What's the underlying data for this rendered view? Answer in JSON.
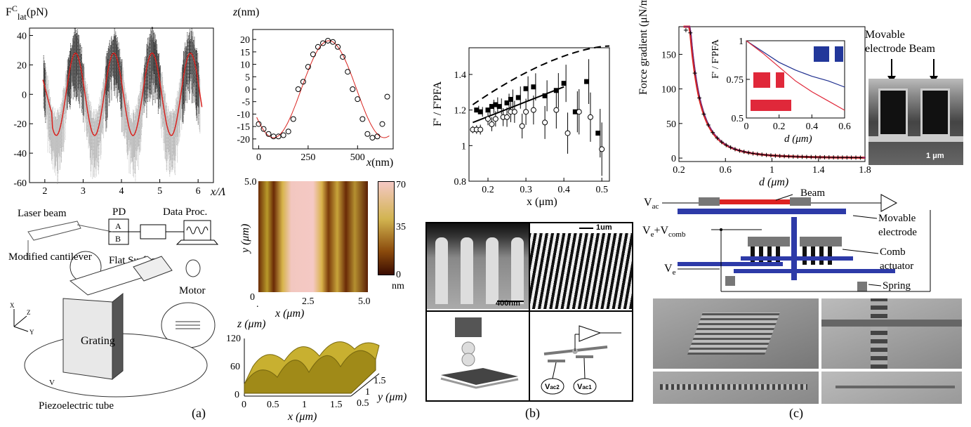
{
  "panel_a": {
    "caption": "(a)",
    "force_plot": {
      "ylabel": "F",
      "ylabel_sup": "C",
      "ylabel_sub": "lat",
      "ylabel_unit": "(pN)",
      "xlabel": "x/Λ"
    },
    "z_plot": {
      "ylabel": "z(nm)",
      "xlabel": "x(nm)"
    },
    "schematic": {
      "laser_beam": "Laser beam",
      "pd": "PD",
      "pd_a": "A",
      "pd_b": "B",
      "data_proc": "Data Proc.",
      "flat_surface": "Flat Surface",
      "modified_cantilever": "Modified cantilever",
      "motor": "Motor",
      "grating": "Grating",
      "piezo": "Piezoelectric tube",
      "v": "V",
      "axis_x": "X",
      "axis_y": "Y",
      "axis_z": "Z"
    },
    "afm_map": {
      "ylabel": "y (μm)",
      "xlabel": "x (μm)",
      "cb_unit": "nm"
    },
    "surf3d": {
      "zlabel": "z (μm)",
      "xlabel": "x (μm)",
      "ylabel": "y (μm)"
    }
  },
  "panel_b": {
    "caption": "(b)",
    "plot": {
      "ylabel": "F' / F'PFA",
      "xlabel": "x (μm)"
    },
    "scalebar_1": "400nm",
    "scalebar_2": "1um",
    "vac2": "V",
    "vac2_sub": "ac2",
    "vac1": "V",
    "vac1_sub": "ac1"
  },
  "panel_c": {
    "caption": "(c)",
    "plot": {
      "ylabel": "Force gradient (μN/m)",
      "xlabel": "d (μm)"
    },
    "inset": {
      "ylabel": "F' / F'PFA",
      "xlabel": "d (μm)"
    },
    "sem_labels": {
      "movable": "Movable",
      "electrode_beam": "electrode Beam",
      "scale": "1 μm"
    },
    "schematic": {
      "vac": "V",
      "vac_sub": "ac",
      "beam": "Beam",
      "ve_comb": "V",
      "ve_comb_sub1": "e",
      "ve_comb_mid": "+V",
      "ve_comb_sub2": "comb",
      "movable": "Movable",
      "electrode": "electrode",
      "comb": "Comb",
      "actuator": "actuator",
      "ve": "V",
      "ve_sub": "e",
      "spring": "Spring"
    }
  },
  "chart_data": [
    {
      "type": "line",
      "title": "",
      "xlabel": "x/Λ",
      "ylabel": "F^C_lat (pN)",
      "xlim": [
        1.6,
        6.4
      ],
      "ylim": [
        -60,
        45
      ],
      "xticks": [
        2,
        3,
        4,
        5,
        6
      ],
      "yticks": [
        -60,
        -40,
        -20,
        0,
        20,
        40
      ],
      "series": [
        {
          "values_desc": "sinusoidal fit",
          "x": [
            1.95,
            2.1,
            2.3,
            2.5,
            2.8,
            3.0,
            3.2,
            3.5,
            3.8,
            4.0,
            4.2,
            4.5,
            4.8,
            5.0,
            5.2,
            5.5,
            5.8,
            6.0,
            6.1
          ],
          "y": [
            10,
            -10,
            -27,
            -10,
            27,
            5,
            -27,
            -10,
            26,
            0,
            -27,
            -5,
            27,
            0,
            -27,
            -10,
            27,
            5,
            -5
          ]
        }
      ]
    },
    {
      "type": "scatter",
      "xlabel": "x(nm)",
      "ylabel": "z(nm)",
      "xlim": [
        -30,
        680
      ],
      "ylim": [
        -24,
        24
      ],
      "xticks": [
        0,
        250,
        500
      ],
      "yticks": [
        -20,
        -15,
        -10,
        -5,
        0,
        5,
        10,
        15,
        20
      ],
      "x": [
        0,
        25,
        50,
        75,
        100,
        125,
        150,
        175,
        200,
        225,
        250,
        275,
        300,
        325,
        350,
        375,
        400,
        425,
        450,
        475,
        500,
        525,
        550,
        575,
        600,
        625,
        650
      ],
      "y": [
        -14,
        -16,
        -18,
        -19,
        -19,
        -18.5,
        -17,
        -12,
        0,
        3,
        9,
        14,
        17,
        18.5,
        19.5,
        19,
        17,
        13,
        7,
        0,
        -4,
        -12,
        -18,
        -19.5,
        -19,
        -14,
        -3
      ]
    },
    {
      "type": "scatter",
      "xlabel": "x (μm)",
      "ylabel": "F' / F'PFA",
      "xlim": [
        0.15,
        0.52
      ],
      "ylim": [
        0.8,
        1.55
      ],
      "xticks": [
        0.2,
        0.3,
        0.4,
        0.5
      ],
      "yticks": [
        0.8,
        1,
        1.2,
        1.4
      ],
      "series": [
        {
          "marker": "filled-square",
          "x": [
            0.17,
            0.18,
            0.2,
            0.21,
            0.22,
            0.23,
            0.25,
            0.26,
            0.28,
            0.3,
            0.32,
            0.35,
            0.38,
            0.4,
            0.43,
            0.46,
            0.49
          ],
          "y": [
            1.2,
            1.19,
            1.2,
            1.22,
            1.23,
            1.22,
            1.24,
            1.26,
            1.27,
            1.32,
            1.33,
            1.28,
            1.31,
            1.35,
            1.19,
            1.36,
            1.07
          ]
        },
        {
          "marker": "open-circle",
          "x": [
            0.16,
            0.17,
            0.18,
            0.2,
            0.21,
            0.22,
            0.24,
            0.25,
            0.26,
            0.27,
            0.29,
            0.3,
            0.32,
            0.35,
            0.38,
            0.41,
            0.44,
            0.47,
            0.5
          ],
          "y": [
            1.09,
            1.09,
            1.09,
            1.15,
            1.12,
            1.15,
            1.16,
            1.16,
            1.19,
            1.19,
            1.11,
            1.19,
            1.2,
            1.13,
            1.2,
            1.07,
            1.19,
            1.16,
            0.98
          ]
        },
        {
          "style": "solid-line",
          "x": [
            0.16,
            0.4
          ],
          "y": [
            1.13,
            1.33
          ]
        },
        {
          "style": "dashed-line",
          "x": [
            0.16,
            0.2,
            0.3,
            0.4,
            0.5
          ],
          "y": [
            1.23,
            1.31,
            1.42,
            1.5,
            1.56
          ]
        }
      ]
    },
    {
      "type": "line",
      "xlabel": "d (μm)",
      "ylabel": "Force gradient (μN/m)",
      "xlim": [
        0.2,
        1.8
      ],
      "ylim": [
        -5,
        190
      ],
      "xticks": [
        0.2,
        0.6,
        1,
        1.4,
        1.8
      ],
      "yticks": [
        0,
        50,
        100,
        150
      ],
      "x": [
        0.23,
        0.26,
        0.3,
        0.35,
        0.4,
        0.5,
        0.6,
        0.7,
        0.8,
        1.0,
        1.2,
        1.4,
        1.6,
        1.8
      ],
      "y": [
        185,
        145,
        100,
        65,
        42,
        20,
        11,
        7,
        5,
        3,
        2,
        1.5,
        1,
        1
      ]
    },
    {
      "type": "line",
      "xlabel": "d (μm)",
      "ylabel": "F' / F'PFA",
      "xlim": [
        0,
        0.6
      ],
      "ylim": [
        0.5,
        1
      ],
      "xticks": [
        0,
        0.2,
        0.4,
        0.6
      ],
      "yticks": [
        0.5,
        0.75,
        1
      ],
      "series": [
        {
          "color": "#1f2f8f",
          "x": [
            0,
            0.1,
            0.2,
            0.3,
            0.4,
            0.5,
            0.6
          ],
          "y": [
            1,
            0.93,
            0.86,
            0.81,
            0.77,
            0.74,
            0.7
          ]
        },
        {
          "color": "#e0283a",
          "x": [
            0,
            0.1,
            0.2,
            0.3,
            0.4,
            0.5,
            0.6
          ],
          "y": [
            1,
            0.92,
            0.83,
            0.74,
            0.67,
            0.61,
            0.55
          ]
        }
      ]
    }
  ]
}
